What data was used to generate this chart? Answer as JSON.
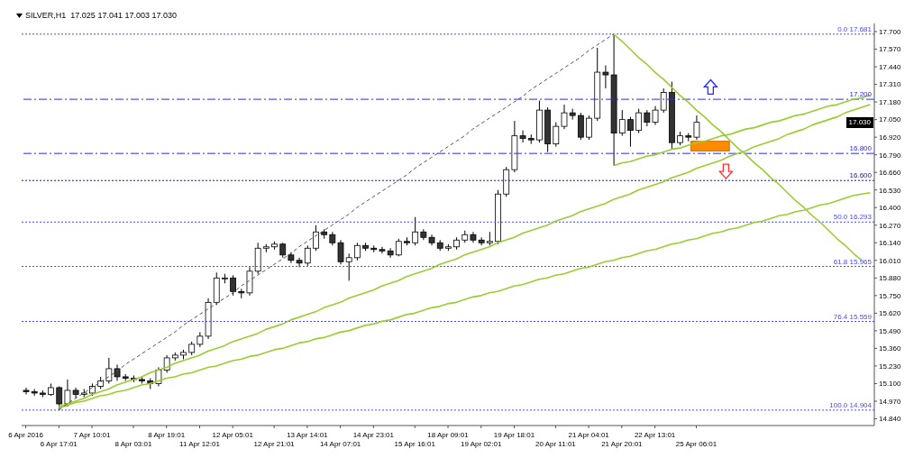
{
  "chart_data": {
    "type": "candlestick",
    "title": "SILVER,H1  17.025 17.041 17.003 17.030",
    "categories": [
      "6 Apr 2016",
      null,
      null,
      null,
      "6 Apr 17:01",
      null,
      null,
      null,
      "7 Apr 10:01",
      null,
      null,
      null,
      null,
      "8 Apr 03:01",
      null,
      null,
      null,
      "8 Apr 19:01",
      null,
      null,
      null,
      "11 Apr 12:01",
      null,
      null,
      null,
      "12 Apr 05:01",
      null,
      null,
      null,
      null,
      "12 Apr 21:01",
      null,
      null,
      null,
      "13 Apr 14:01",
      null,
      null,
      null,
      "14 Apr 07:01",
      null,
      null,
      null,
      "14 Apr 23:01",
      null,
      null,
      null,
      null,
      "15 Apr 16:01",
      null,
      null,
      null,
      "18 Apr 09:01",
      null,
      null,
      null,
      "19 Apr 02:01",
      null,
      null,
      null,
      "19 Apr 18:01",
      null,
      null,
      null,
      null,
      "20 Apr 11:01",
      null,
      null,
      null,
      "21 Apr 04:01",
      null,
      null,
      null,
      "21 Apr 20:01",
      null,
      null,
      null,
      "22 Apr 13:01",
      null,
      null,
      null,
      null,
      "25 Apr 06:01",
      null,
      null,
      null,
      null,
      null,
      null,
      null,
      null,
      null,
      null,
      null,
      null,
      null,
      null,
      null,
      null,
      null,
      null,
      null,
      null,
      null
    ],
    "ohlc": [
      [
        15.05,
        15.07,
        15.02,
        15.04
      ],
      [
        15.04,
        15.06,
        15.01,
        15.03
      ],
      [
        15.03,
        15.05,
        15.0,
        15.02
      ],
      [
        15.02,
        15.1,
        15.01,
        15.07
      ],
      [
        15.07,
        15.08,
        14.904,
        14.95
      ],
      [
        14.95,
        15.13,
        14.93,
        15.05
      ],
      [
        15.05,
        15.07,
        14.99,
        15.02
      ],
      [
        15.02,
        15.06,
        15.0,
        15.03
      ],
      [
        15.03,
        15.1,
        15.01,
        15.08
      ],
      [
        15.08,
        15.15,
        15.06,
        15.12
      ],
      [
        15.12,
        15.29,
        15.1,
        15.21
      ],
      [
        15.21,
        15.24,
        15.12,
        15.15
      ],
      [
        15.15,
        15.17,
        15.12,
        15.14
      ],
      [
        15.14,
        15.16,
        15.11,
        15.13
      ],
      [
        15.13,
        15.15,
        15.1,
        15.12
      ],
      [
        15.12,
        15.14,
        15.06,
        15.1
      ],
      [
        15.1,
        15.22,
        15.08,
        15.2
      ],
      [
        15.2,
        15.31,
        15.18,
        15.29
      ],
      [
        15.29,
        15.33,
        15.27,
        15.31
      ],
      [
        15.31,
        15.35,
        15.28,
        15.33
      ],
      [
        15.33,
        15.41,
        15.31,
        15.39
      ],
      [
        15.39,
        15.48,
        15.37,
        15.45
      ],
      [
        15.45,
        15.73,
        15.43,
        15.7
      ],
      [
        15.7,
        15.92,
        15.68,
        15.88
      ],
      [
        15.88,
        15.91,
        15.84,
        15.88
      ],
      [
        15.88,
        15.9,
        15.75,
        15.78
      ],
      [
        15.78,
        15.8,
        15.73,
        15.77
      ],
      [
        15.77,
        15.96,
        15.75,
        15.93
      ],
      [
        15.93,
        16.14,
        15.91,
        16.1
      ],
      [
        16.1,
        16.13,
        16.07,
        16.11
      ],
      [
        16.11,
        16.15,
        16.09,
        16.13
      ],
      [
        16.13,
        16.14,
        16.03,
        16.05
      ],
      [
        16.05,
        16.07,
        15.99,
        16.01
      ],
      [
        16.01,
        16.03,
        15.96,
        15.99
      ],
      [
        15.99,
        16.12,
        15.97,
        16.1
      ],
      [
        16.1,
        16.27,
        16.08,
        16.22
      ],
      [
        16.22,
        16.24,
        16.17,
        16.2
      ],
      [
        16.2,
        16.22,
        16.12,
        16.14
      ],
      [
        16.14,
        16.16,
        15.98,
        16.0
      ],
      [
        16.0,
        16.06,
        15.86,
        16.03
      ],
      [
        16.03,
        16.14,
        16.01,
        16.12
      ],
      [
        16.12,
        16.14,
        16.08,
        16.1
      ],
      [
        16.1,
        16.12,
        16.07,
        16.09
      ],
      [
        16.09,
        16.11,
        16.06,
        16.08
      ],
      [
        16.08,
        16.1,
        16.03,
        16.05
      ],
      [
        16.05,
        16.17,
        16.04,
        16.15
      ],
      [
        16.15,
        16.18,
        16.12,
        16.14
      ],
      [
        16.14,
        16.33,
        16.12,
        16.22
      ],
      [
        16.22,
        16.24,
        16.16,
        16.18
      ],
      [
        16.18,
        16.2,
        16.12,
        16.14
      ],
      [
        16.14,
        16.16,
        16.08,
        16.1
      ],
      [
        16.1,
        16.13,
        16.08,
        16.11
      ],
      [
        16.11,
        16.18,
        16.09,
        16.16
      ],
      [
        16.16,
        16.23,
        16.14,
        16.2
      ],
      [
        16.2,
        16.22,
        16.14,
        16.16
      ],
      [
        16.16,
        16.18,
        16.12,
        16.14
      ],
      [
        16.14,
        16.22,
        16.12,
        16.15
      ],
      [
        16.15,
        16.53,
        16.13,
        16.5
      ],
      [
        16.5,
        16.7,
        16.48,
        16.68
      ],
      [
        16.68,
        17.04,
        16.66,
        16.93
      ],
      [
        16.93,
        16.97,
        16.88,
        16.91
      ],
      [
        16.91,
        16.94,
        16.87,
        16.9
      ],
      [
        16.9,
        17.19,
        16.88,
        17.12
      ],
      [
        17.12,
        17.14,
        16.81,
        16.87
      ],
      [
        16.87,
        17.03,
        16.85,
        17.0
      ],
      [
        17.0,
        17.16,
        16.98,
        17.1
      ],
      [
        17.1,
        17.13,
        17.05,
        17.08
      ],
      [
        17.08,
        17.1,
        16.9,
        16.92
      ],
      [
        16.92,
        17.08,
        16.9,
        17.06
      ],
      [
        17.06,
        17.58,
        17.04,
        17.4
      ],
      [
        17.4,
        17.45,
        17.28,
        17.38
      ],
      [
        17.38,
        17.681,
        16.71,
        16.95
      ],
      [
        16.95,
        17.12,
        16.93,
        17.05
      ],
      [
        17.05,
        17.07,
        16.85,
        16.97
      ],
      [
        16.97,
        17.13,
        16.95,
        17.1
      ],
      [
        17.1,
        17.12,
        17.0,
        17.03
      ],
      [
        17.03,
        17.15,
        17.01,
        17.12
      ],
      [
        17.12,
        17.28,
        17.1,
        17.25
      ],
      [
        17.25,
        17.33,
        16.83,
        16.88
      ],
      [
        16.88,
        16.96,
        16.86,
        16.93
      ],
      [
        16.93,
        16.95,
        16.89,
        16.92
      ],
      [
        16.92,
        17.08,
        16.9,
        17.03
      ],
      null,
      null,
      null,
      null,
      null,
      null,
      null,
      null,
      null,
      null,
      null,
      null,
      null,
      null,
      null,
      null,
      null,
      null,
      null,
      null,
      null
    ],
    "series": [
      {
        "type": "line",
        "color": "#9acd32",
        "values": [
          null,
          null,
          null,
          null,
          14.92,
          14.94,
          14.96,
          14.97,
          14.99,
          15.01,
          15.02,
          15.04,
          15.05,
          15.07,
          15.09,
          15.1,
          15.12,
          15.14,
          15.15,
          15.17,
          15.18,
          15.2,
          15.22,
          15.23,
          15.25,
          15.27,
          15.28,
          15.3,
          15.31,
          15.33,
          15.35,
          15.36,
          15.38,
          15.4,
          15.41,
          15.43,
          15.44,
          15.46,
          15.48,
          15.49,
          15.51,
          15.53,
          15.54,
          15.56,
          15.57,
          15.59,
          15.61,
          15.62,
          15.64,
          15.66,
          15.67,
          15.69,
          15.7,
          15.72,
          15.74,
          15.75,
          15.77,
          15.78,
          15.8,
          15.82,
          15.83,
          15.85,
          15.87,
          15.88,
          15.9,
          15.91,
          15.93,
          15.95,
          15.96,
          15.98,
          16.0,
          16.01,
          16.03,
          16.04,
          16.06,
          16.08,
          16.09,
          16.11,
          16.13,
          16.14,
          16.16,
          16.17,
          16.19,
          16.21,
          16.22,
          16.24,
          16.25,
          16.27,
          16.29,
          16.3,
          16.32,
          16.34,
          16.35,
          16.37,
          16.38,
          16.4,
          16.42,
          16.43,
          16.45,
          16.47,
          16.49,
          16.5,
          16.51
        ]
      },
      {
        "type": "line",
        "color": "#9acd32",
        "values": [
          null,
          null,
          null,
          null,
          14.93,
          14.95,
          14.97,
          14.99,
          15.02,
          15.04,
          15.06,
          15.09,
          15.11,
          15.13,
          15.15,
          15.18,
          15.2,
          15.22,
          15.25,
          15.27,
          15.29,
          15.31,
          15.34,
          15.36,
          15.38,
          15.41,
          15.43,
          15.45,
          15.47,
          15.5,
          15.52,
          15.54,
          15.57,
          15.59,
          15.61,
          15.63,
          15.66,
          15.68,
          15.7,
          15.73,
          15.75,
          15.77,
          15.79,
          15.82,
          15.84,
          15.86,
          15.89,
          15.91,
          15.93,
          15.95,
          15.98,
          16.0,
          16.02,
          16.05,
          16.07,
          16.09,
          16.11,
          16.14,
          16.16,
          16.18,
          16.21,
          16.23,
          16.25,
          16.27,
          16.3,
          16.32,
          16.34,
          16.37,
          16.39,
          16.41,
          16.43,
          16.46,
          16.48,
          16.5,
          16.53,
          16.55,
          16.57,
          16.59,
          16.62,
          16.64,
          16.66,
          16.69,
          16.71,
          16.73,
          16.75,
          16.78,
          16.8,
          16.82,
          16.85,
          16.87,
          16.89,
          16.91,
          16.94,
          16.96,
          16.98,
          17.01,
          17.03,
          17.05,
          17.07,
          17.1,
          17.12,
          17.14,
          17.16
        ]
      },
      {
        "type": "line",
        "color": "#9acd32",
        "values": [
          null,
          null,
          null,
          null,
          null,
          null,
          null,
          null,
          null,
          null,
          null,
          null,
          null,
          null,
          null,
          null,
          null,
          null,
          null,
          null,
          null,
          null,
          null,
          null,
          null,
          null,
          null,
          null,
          null,
          null,
          null,
          null,
          null,
          null,
          null,
          null,
          null,
          null,
          null,
          null,
          null,
          null,
          null,
          null,
          null,
          null,
          null,
          null,
          null,
          null,
          null,
          null,
          null,
          null,
          null,
          null,
          null,
          null,
          null,
          null,
          null,
          null,
          null,
          null,
          null,
          null,
          null,
          null,
          null,
          null,
          null,
          16.71,
          16.73,
          16.74,
          16.76,
          16.78,
          16.79,
          16.81,
          16.83,
          16.84,
          16.86,
          16.88,
          16.89,
          16.91,
          16.93,
          16.94,
          16.96,
          16.98,
          16.99,
          17.01,
          17.03,
          17.04,
          17.06,
          17.08,
          17.09,
          17.11,
          17.13,
          17.15,
          17.16,
          17.18,
          17.2,
          17.21,
          17.23
        ]
      },
      {
        "type": "line",
        "color": "#9acd32",
        "values": [
          null,
          null,
          null,
          null,
          null,
          null,
          null,
          null,
          null,
          null,
          null,
          null,
          null,
          null,
          null,
          null,
          null,
          null,
          null,
          null,
          null,
          null,
          null,
          null,
          null,
          null,
          null,
          null,
          null,
          null,
          null,
          null,
          null,
          null,
          null,
          null,
          null,
          null,
          null,
          null,
          null,
          null,
          null,
          null,
          null,
          null,
          null,
          null,
          null,
          null,
          null,
          null,
          null,
          null,
          null,
          null,
          null,
          null,
          null,
          null,
          null,
          null,
          null,
          null,
          null,
          null,
          null,
          null,
          null,
          null,
          null,
          17.681,
          17.63,
          17.57,
          17.51,
          17.46,
          17.4,
          17.35,
          17.29,
          17.23,
          17.18,
          17.12,
          17.07,
          17.01,
          16.96,
          16.9,
          16.84,
          16.79,
          16.73,
          16.68,
          16.62,
          16.57,
          16.51,
          16.45,
          16.4,
          16.34,
          16.29,
          16.23,
          16.17,
          16.12,
          16.06,
          16.01,
          null
        ]
      },
      {
        "type": "line",
        "color": "#555555",
        "line_style": "dashed",
        "values": [
          null,
          null,
          null,
          null,
          14.904,
          14.95,
          14.99,
          15.03,
          15.07,
          15.11,
          15.15,
          15.19,
          15.24,
          15.28,
          15.32,
          15.36,
          15.4,
          15.44,
          15.48,
          15.53,
          15.57,
          15.61,
          15.65,
          15.69,
          15.73,
          15.77,
          15.82,
          15.86,
          15.9,
          15.94,
          15.98,
          16.02,
          16.06,
          16.11,
          16.15,
          16.19,
          16.23,
          16.27,
          16.31,
          16.35,
          16.4,
          16.44,
          16.48,
          16.52,
          16.56,
          16.6,
          16.64,
          16.69,
          16.73,
          16.77,
          16.81,
          16.85,
          16.89,
          16.93,
          16.98,
          17.02,
          17.06,
          17.1,
          17.14,
          17.18,
          17.22,
          17.27,
          17.31,
          17.35,
          17.39,
          17.43,
          17.47,
          17.51,
          17.56,
          17.6,
          17.64,
          17.681,
          null,
          null,
          null,
          null,
          null,
          null,
          null,
          null,
          null,
          null,
          null,
          null,
          null,
          null,
          null,
          null,
          null,
          null,
          null,
          null,
          null,
          null,
          null,
          null,
          null,
          null,
          null,
          null,
          null,
          null,
          null
        ]
      }
    ],
    "ylim": [
      14.79,
      17.76
    ],
    "yticks": [
      {
        "value": 17.7,
        "label": "17.700"
      },
      {
        "value": 17.57,
        "label": "17.570"
      },
      {
        "value": 17.44,
        "label": "17.440"
      },
      {
        "value": 17.31,
        "label": "17.310"
      },
      {
        "value": 17.18,
        "label": "17.180"
      },
      {
        "value": 17.05,
        "label": "17.050"
      },
      {
        "value": 16.92,
        "label": "16.920"
      },
      {
        "value": 16.79,
        "label": "16.790"
      },
      {
        "value": 16.66,
        "label": "16.660"
      },
      {
        "value": 16.53,
        "label": "16.530"
      },
      {
        "value": 16.4,
        "label": "16.400"
      },
      {
        "value": 16.27,
        "label": "16.270"
      },
      {
        "value": 16.14,
        "label": "16.140"
      },
      {
        "value": 16.01,
        "label": "16.010"
      },
      {
        "value": 15.88,
        "label": "15.880"
      },
      {
        "value": 15.75,
        "label": "15.750"
      },
      {
        "value": 15.62,
        "label": "15.620"
      },
      {
        "value": 15.49,
        "label": "15.490"
      },
      {
        "value": 15.36,
        "label": "15.360"
      },
      {
        "value": 15.23,
        "label": "15.230"
      },
      {
        "value": 15.1,
        "label": "15.100"
      },
      {
        "value": 14.97,
        "label": "14.970"
      },
      {
        "value": 14.84,
        "label": "14.840"
      }
    ],
    "ref_lines": [
      {
        "axis": "y",
        "value": 17.681,
        "label": "0.0  17.681",
        "color": "#4a4aff",
        "line_style": "dotted"
      },
      {
        "axis": "y",
        "value": 16.293,
        "label": "50.0  16.293",
        "color": "#4a4aff",
        "line_style": "dotted"
      },
      {
        "axis": "y",
        "value": 15.965,
        "label": "61.8  15.965",
        "color": "#4a4aff",
        "line_style": "dotted"
      },
      {
        "axis": "y",
        "value": 15.559,
        "label": "76.4  15.559",
        "color": "#4a4aff",
        "line_style": "dotted"
      },
      {
        "axis": "y",
        "value": 14.904,
        "label": "100.0  14.904",
        "color": "#4a4aff",
        "line_style": "dotted"
      },
      {
        "axis": "y",
        "value": 17.2,
        "label": "17.200",
        "color": "#2a2aee",
        "line_style": "dashed"
      },
      {
        "axis": "y",
        "value": 16.8,
        "label": "16.800",
        "color": "#2a2aee",
        "line_style": "dashed"
      },
      {
        "axis": "y",
        "value": 16.6,
        "label": "16.600",
        "color": "#1a1a80",
        "line_style": "dotted"
      }
    ],
    "annotations": [
      {
        "text": "17.030",
        "y": 17.03
      }
    ]
  }
}
